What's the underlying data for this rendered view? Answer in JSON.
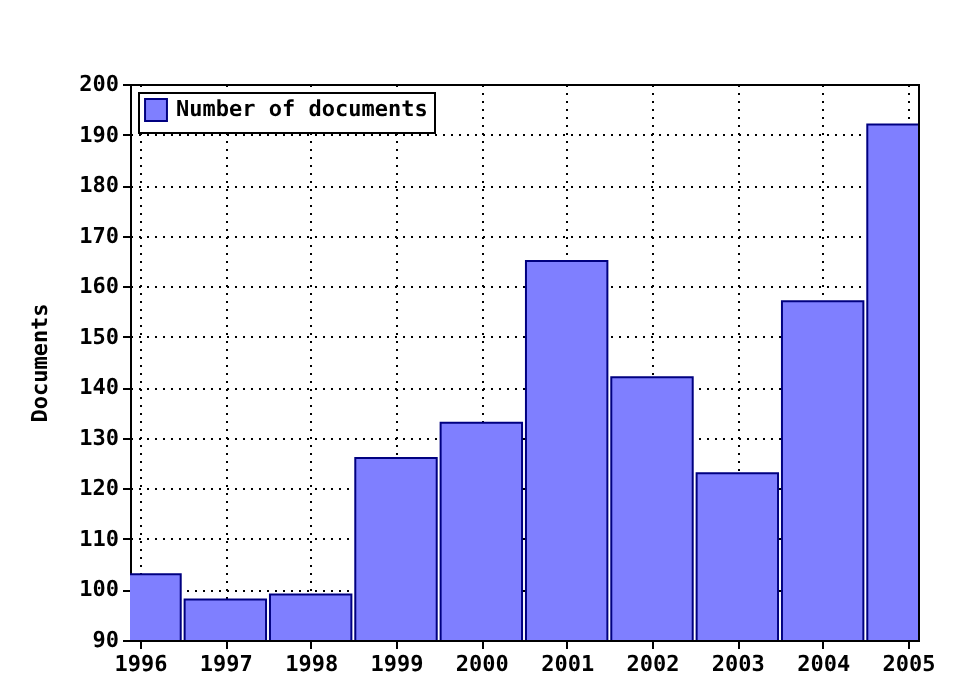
{
  "chart_data": {
    "type": "bar",
    "ylabel": "Documents",
    "x": [
      1996,
      1997,
      1998,
      1999,
      2000,
      2001,
      2002,
      2003,
      2004,
      2005
    ],
    "series": [
      {
        "name": "Number of documents",
        "color": "#7f7fff",
        "values": [
          103,
          98,
          99,
          126,
          133,
          165,
          142,
          123,
          157,
          192
        ]
      }
    ],
    "xlim": [
      1996,
      2005
    ],
    "xticks": [
      1996,
      1997,
      1998,
      1999,
      2000,
      2001,
      2002,
      2003,
      2004,
      2005
    ],
    "ylim": [
      90,
      200
    ],
    "yticks": [
      90,
      100,
      110,
      120,
      130,
      140,
      150,
      160,
      170,
      180,
      190,
      200
    ],
    "grid": true,
    "legend": "top left"
  }
}
